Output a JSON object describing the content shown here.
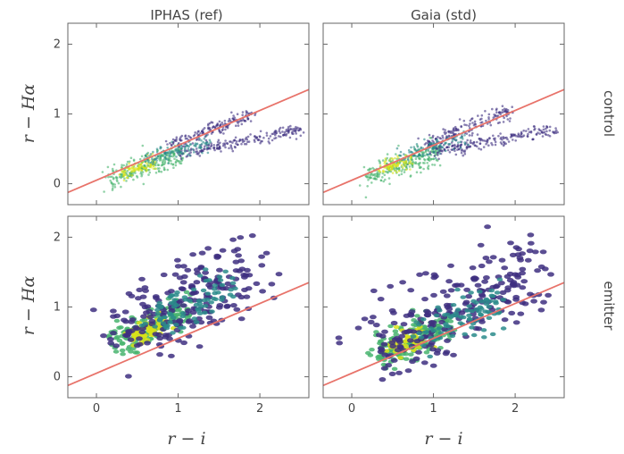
{
  "figure": {
    "columns": [
      "IPHAS (ref)",
      "Gaia (std)"
    ],
    "rows": [
      "control",
      "emitter"
    ],
    "xlabel": "r − i",
    "ylabel": "r − Hα"
  },
  "chart_data": [
    {
      "type": "scatter",
      "panel": "control / IPHAS (ref)",
      "xlim": [
        -0.35,
        2.6
      ],
      "ylim": [
        -0.3,
        2.3
      ],
      "xticks": [
        0,
        1,
        2
      ],
      "yticks": [
        0,
        1,
        2
      ],
      "reference_line": {
        "slope": 0.5,
        "intercept": 0.05,
        "color": "#e8736a"
      },
      "density_blobs": [
        {
          "x0": 0.15,
          "y0": 0.08,
          "x1": 1.05,
          "y1": 0.42,
          "w": 0.08,
          "n": 260,
          "color": "#48b46e"
        },
        {
          "x0": 0.3,
          "y0": 0.15,
          "x1": 0.7,
          "y1": 0.3,
          "w": 0.05,
          "n": 90,
          "color": "#d8e219"
        },
        {
          "x0": 0.9,
          "y0": 0.55,
          "x1": 1.9,
          "y1": 1.0,
          "w": 0.05,
          "n": 170,
          "color": "#3e2f80"
        },
        {
          "x0": 1.0,
          "y0": 0.42,
          "x1": 2.5,
          "y1": 0.78,
          "w": 0.04,
          "n": 200,
          "color": "#3e2f80"
        },
        {
          "x0": 0.6,
          "y0": 0.35,
          "x1": 1.4,
          "y1": 0.6,
          "w": 0.06,
          "n": 120,
          "color": "#2a8b8b"
        }
      ]
    },
    {
      "type": "scatter",
      "panel": "control / Gaia (std)",
      "xlim": [
        -0.35,
        2.6
      ],
      "ylim": [
        -0.3,
        2.3
      ],
      "xticks": [
        0,
        1,
        2
      ],
      "yticks": [
        0,
        1,
        2
      ],
      "reference_line": {
        "slope": 0.5,
        "intercept": 0.05,
        "color": "#e8736a"
      },
      "density_blobs": [
        {
          "x0": 0.2,
          "y0": 0.1,
          "x1": 1.05,
          "y1": 0.45,
          "w": 0.08,
          "n": 260,
          "color": "#48b46e"
        },
        {
          "x0": 0.35,
          "y0": 0.2,
          "x1": 0.75,
          "y1": 0.35,
          "w": 0.05,
          "n": 90,
          "color": "#d8e219"
        },
        {
          "x0": 0.9,
          "y0": 0.55,
          "x1": 1.95,
          "y1": 1.05,
          "w": 0.06,
          "n": 180,
          "color": "#3e2f80"
        },
        {
          "x0": 1.0,
          "y0": 0.45,
          "x1": 2.5,
          "y1": 0.8,
          "w": 0.05,
          "n": 200,
          "color": "#3e2f80"
        },
        {
          "x0": 0.6,
          "y0": 0.4,
          "x1": 1.4,
          "y1": 0.65,
          "w": 0.06,
          "n": 120,
          "color": "#2a8b8b"
        }
      ]
    },
    {
      "type": "scatter",
      "panel": "emitter / IPHAS (ref)",
      "xlim": [
        -0.35,
        2.6
      ],
      "ylim": [
        -0.3,
        2.3
      ],
      "xticks": [
        0,
        1,
        2
      ],
      "yticks": [
        0,
        1,
        2
      ],
      "reference_line": {
        "slope": 0.5,
        "intercept": 0.05,
        "color": "#e8736a"
      },
      "density_blobs": [
        {
          "x0": 0.25,
          "y0": 0.45,
          "x1": 1.1,
          "y1": 1.0,
          "w": 0.12,
          "n": 170,
          "color": "#48b46e"
        },
        {
          "x0": 0.4,
          "y0": 0.55,
          "x1": 0.8,
          "y1": 0.75,
          "w": 0.08,
          "n": 60,
          "color": "#d8e219"
        },
        {
          "x0": 0.3,
          "y0": 0.6,
          "x1": 2.0,
          "y1": 1.6,
          "w": 0.28,
          "n": 210,
          "color": "#3e2f80"
        },
        {
          "x0": 0.7,
          "y0": 0.8,
          "x1": 1.6,
          "y1": 1.3,
          "w": 0.15,
          "n": 80,
          "color": "#2a8b8b"
        }
      ]
    },
    {
      "type": "scatter",
      "panel": "emitter / Gaia (std)",
      "xlim": [
        -0.35,
        2.6
      ],
      "ylim": [
        -0.3,
        2.3
      ],
      "xticks": [
        0,
        1,
        2
      ],
      "yticks": [
        0,
        1,
        2
      ],
      "reference_line": {
        "slope": 0.5,
        "intercept": 0.05,
        "color": "#e8736a"
      },
      "density_blobs": [
        {
          "x0": 0.3,
          "y0": 0.35,
          "x1": 1.2,
          "y1": 0.75,
          "w": 0.12,
          "n": 170,
          "color": "#48b46e"
        },
        {
          "x0": 0.5,
          "y0": 0.42,
          "x1": 0.9,
          "y1": 0.6,
          "w": 0.08,
          "n": 60,
          "color": "#d8e219"
        },
        {
          "x0": 0.3,
          "y0": 0.4,
          "x1": 2.2,
          "y1": 1.5,
          "w": 0.3,
          "n": 230,
          "color": "#3e2f80"
        },
        {
          "x0": 0.8,
          "y0": 0.6,
          "x1": 1.8,
          "y1": 1.05,
          "w": 0.15,
          "n": 90,
          "color": "#2a8b8b"
        }
      ]
    }
  ]
}
